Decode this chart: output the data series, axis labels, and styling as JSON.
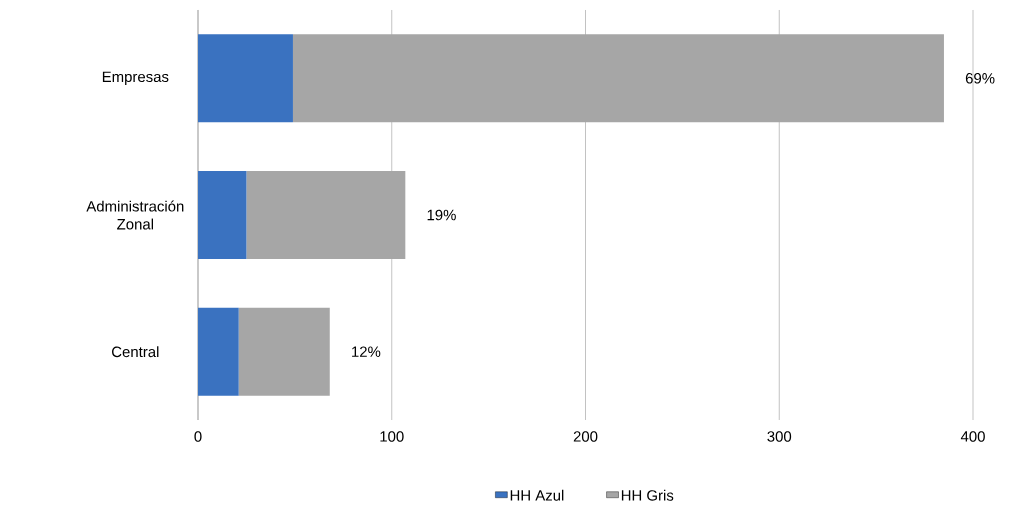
{
  "chart_data": {
    "type": "bar",
    "orientation": "horizontal",
    "stacked": true,
    "categories": [
      "Empresas",
      "Administración Zonal",
      "Central"
    ],
    "series": [
      {
        "name": "HH Azul",
        "color": "#3a72c0",
        "values": [
          49,
          25,
          21
        ]
      },
      {
        "name": "HH Gris",
        "color": "#a6a6a6",
        "values": [
          336,
          82,
          47
        ]
      }
    ],
    "annotations": [
      {
        "text": "69%",
        "x": 385,
        "y": "Empresas"
      },
      {
        "text": "19%",
        "x": 107,
        "y": "Administración Zonal"
      },
      {
        "text": "12%",
        "x": 68,
        "y": "Central"
      }
    ],
    "xlim": [
      0,
      400
    ],
    "xticks": [
      0,
      100,
      200,
      300,
      400
    ],
    "grid": "x",
    "legend": "bottom"
  }
}
